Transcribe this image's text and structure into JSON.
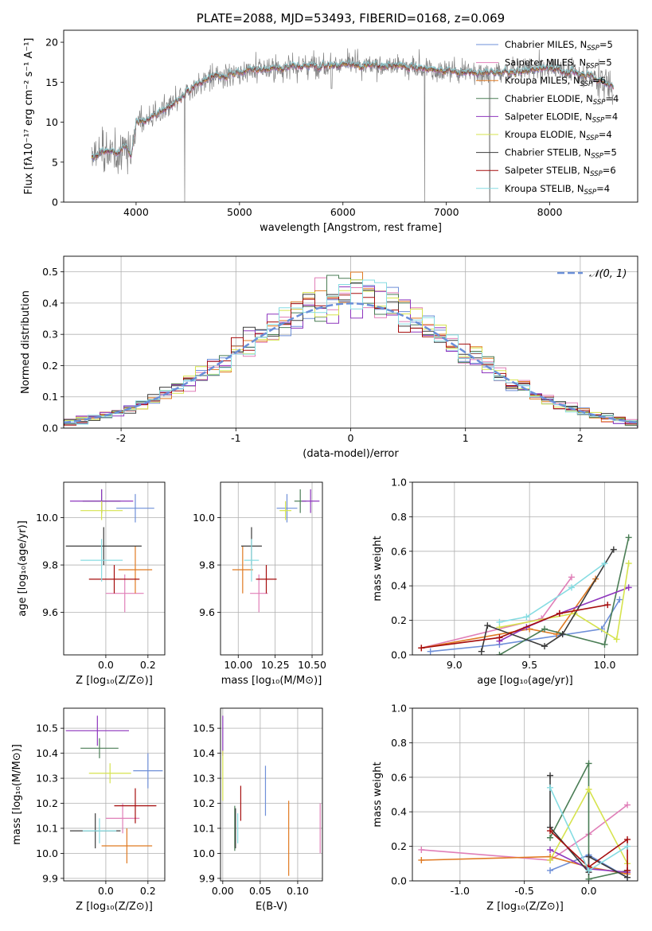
{
  "chart_data": [
    {
      "id": "spectrum",
      "type": "line",
      "title": "PLATE=2088, MJD=53493, FIBERID=0168, z=0.069",
      "xlabel": "wavelength [Angstrom, rest frame]",
      "ylabel": "Flux [fλ10⁻¹⁷ erg cm⁻² s⁻¹ A⁻¹]",
      "xlim": [
        3300,
        8850
      ],
      "ylim": [
        0,
        21.5
      ],
      "xticks": [
        4000,
        5000,
        6000,
        7000,
        8000
      ],
      "yticks": [
        0,
        5,
        10,
        15,
        20
      ],
      "grid": false,
      "legend_position": "right",
      "series": [
        {
          "name": "Chabrier MILES, N_SSP=5",
          "color": "#6e8fd8"
        },
        {
          "name": "Salpeter MILES, N_SSP=5",
          "color": "#e07fb8"
        },
        {
          "name": "Kroupa MILES, N_SSP=6",
          "color": "#e07a22"
        },
        {
          "name": "Chabrier ELODIE, N_SSP=4",
          "color": "#4a7d55"
        },
        {
          "name": "Salpeter ELODIE, N_SSP=4",
          "color": "#8e36be"
        },
        {
          "name": "Kroupa ELODIE, N_SSP=4",
          "color": "#d6e34e"
        },
        {
          "name": "Chabrier STELIB, N_SSP=5",
          "color": "#3b3b3b"
        },
        {
          "name": "Salpeter STELIB, N_SSP=6",
          "color": "#a50d0d"
        },
        {
          "name": "Kroupa STELIB, N_SSP=4",
          "color": "#86dce2"
        }
      ],
      "data_color": "#808080",
      "continuum_points": [
        [
          3570,
          5.5
        ],
        [
          3700,
          6.5
        ],
        [
          3800,
          6
        ],
        [
          3900,
          7
        ],
        [
          3950,
          5.8
        ],
        [
          4000,
          10
        ],
        [
          4100,
          10.3
        ],
        [
          4200,
          11
        ],
        [
          4300,
          11.8
        ],
        [
          4400,
          12.5
        ],
        [
          4500,
          13.8
        ],
        [
          4600,
          14.8
        ],
        [
          4700,
          15.4
        ],
        [
          4800,
          15.8
        ],
        [
          4900,
          16
        ],
        [
          5000,
          16.3
        ],
        [
          5200,
          16.6
        ],
        [
          5400,
          16.8
        ],
        [
          5600,
          17
        ],
        [
          5800,
          17.2
        ],
        [
          6000,
          17.2
        ],
        [
          6200,
          17.1
        ],
        [
          6400,
          17.1
        ],
        [
          6600,
          17
        ],
        [
          6800,
          16.7
        ],
        [
          7000,
          16.4
        ],
        [
          7200,
          16.3
        ],
        [
          7400,
          16.2
        ],
        [
          7600,
          16.3
        ],
        [
          7800,
          16.5
        ],
        [
          8000,
          16.8
        ],
        [
          8200,
          16.3
        ],
        [
          8400,
          15.8
        ],
        [
          8600,
          14.5
        ]
      ]
    },
    {
      "id": "residuals",
      "type": "histogram",
      "xlabel": "(data-model)/error",
      "ylabel": "Normed distribution",
      "xlim": [
        -2.5,
        2.5
      ],
      "ylim": [
        0,
        0.55
      ],
      "xticks": [
        -2,
        -1,
        0,
        1,
        2
      ],
      "yticks": [
        0.0,
        0.1,
        0.2,
        0.3,
        0.4,
        0.5
      ],
      "grid": true,
      "legend": "𝒩(0, 1)",
      "legend_position": "top-right",
      "curve_color": "#6a8fd8"
    },
    {
      "id": "age_vs_Z",
      "type": "errorbar",
      "xlabel": "Z [log₁₀(Z/Z⊙)]",
      "ylabel": "age  [log₁₀(age/yr)]",
      "xlim": [
        -0.2,
        0.28
      ],
      "ylim": [
        9.42,
        10.15
      ],
      "xticks": [
        0.0,
        0.2
      ],
      "yticks": [
        9.6,
        9.8,
        10.0
      ],
      "grid": true,
      "points": [
        {
          "x": 0.14,
          "xerr": 0.09,
          "y": 10.04,
          "yerr": 0.06,
          "color": "#6e8fd8"
        },
        {
          "x": 0.09,
          "xerr": 0.09,
          "y": 9.68,
          "yerr": 0.08,
          "color": "#e07fb8"
        },
        {
          "x": 0.14,
          "xerr": 0.08,
          "y": 9.78,
          "yerr": 0.1,
          "color": "#e07a22"
        },
        {
          "x": -0.02,
          "xerr": 0.09,
          "y": 10.07,
          "yerr": 0.05,
          "color": "#4a7d55"
        },
        {
          "x": -0.02,
          "xerr": 0.15,
          "y": 10.07,
          "yerr": 0.05,
          "color": "#8e36be"
        },
        {
          "x": -0.02,
          "xerr": 0.1,
          "y": 10.03,
          "yerr": 0.04,
          "color": "#d6e34e"
        },
        {
          "x": -0.01,
          "xerr": 0.18,
          "y": 9.88,
          "yerr": 0.08,
          "color": "#3b3b3b"
        },
        {
          "x": 0.04,
          "xerr": 0.12,
          "y": 9.74,
          "yerr": 0.06,
          "color": "#a50d0d"
        },
        {
          "x": -0.02,
          "xerr": 0.1,
          "y": 9.82,
          "yerr": 0.09,
          "color": "#86dce2"
        }
      ]
    },
    {
      "id": "age_vs_mass",
      "type": "errorbar",
      "xlabel": "mass [log₁₀(M/M⊙)]",
      "ylabel": "",
      "xlim": [
        9.88,
        10.57
      ],
      "ylim": [
        9.42,
        10.15
      ],
      "xticks": [
        10.0,
        10.25,
        10.5
      ],
      "yticks": [
        9.6,
        9.8,
        10.0
      ],
      "grid": true,
      "points": [
        {
          "x": 10.33,
          "xerr": 0.07,
          "y": 10.04,
          "yerr": 0.06,
          "color": "#6e8fd8"
        },
        {
          "x": 10.14,
          "xerr": 0.06,
          "y": 9.68,
          "yerr": 0.08,
          "color": "#e07fb8"
        },
        {
          "x": 10.03,
          "xerr": 0.07,
          "y": 9.78,
          "yerr": 0.1,
          "color": "#e07a22"
        },
        {
          "x": 10.42,
          "xerr": 0.04,
          "y": 10.07,
          "yerr": 0.05,
          "color": "#4a7d55"
        },
        {
          "x": 10.49,
          "xerr": 0.06,
          "y": 10.07,
          "yerr": 0.05,
          "color": "#8e36be"
        },
        {
          "x": 10.32,
          "xerr": 0.04,
          "y": 10.03,
          "yerr": 0.04,
          "color": "#d6e34e"
        },
        {
          "x": 10.09,
          "xerr": 0.07,
          "y": 9.88,
          "yerr": 0.08,
          "color": "#3b3b3b"
        },
        {
          "x": 10.19,
          "xerr": 0.07,
          "y": 9.74,
          "yerr": 0.06,
          "color": "#a50d0d"
        },
        {
          "x": 10.09,
          "xerr": 0.05,
          "y": 9.82,
          "yerr": 0.09,
          "color": "#86dce2"
        }
      ]
    },
    {
      "id": "weight_vs_age",
      "type": "line",
      "xlabel": "age  [log₁₀(age/yr)]",
      "ylabel": "mass weight",
      "xlim": [
        8.72,
        10.22
      ],
      "ylim": [
        0,
        1.0
      ],
      "xticks": [
        9.0,
        9.5,
        10.0
      ],
      "yticks": [
        0.0,
        0.2,
        0.4,
        0.6,
        0.8,
        1.0
      ],
      "grid": true,
      "series": [
        {
          "name": "Chabrier MILES",
          "color": "#6e8fd8",
          "x": [
            8.84,
            9.3,
            9.98,
            10.1
          ],
          "y": [
            0.02,
            0.06,
            0.15,
            0.32
          ]
        },
        {
          "name": "Salpeter MILES",
          "color": "#e07fb8",
          "x": [
            8.78,
            9.58,
            9.78
          ],
          "y": [
            0.04,
            0.21,
            0.45
          ]
        },
        {
          "name": "Kroupa MILES",
          "color": "#e07a22",
          "x": [
            8.78,
            9.5,
            9.68,
            9.94
          ],
          "y": [
            0.04,
            0.15,
            0.12,
            0.44
          ]
        },
        {
          "name": "Chabrier ELODIE",
          "color": "#4a7d55",
          "x": [
            9.3,
            9.6,
            10.0,
            10.16
          ],
          "y": [
            0.0,
            0.15,
            0.06,
            0.68
          ]
        },
        {
          "name": "Salpeter ELODIE",
          "color": "#8e36be",
          "x": [
            9.3,
            9.48,
            9.7,
            10.16
          ],
          "y": [
            0.08,
            0.16,
            0.24,
            0.39
          ]
        },
        {
          "name": "Kroupa ELODIE",
          "color": "#d6e34e",
          "x": [
            9.3,
            9.8,
            10.08,
            10.16
          ],
          "y": [
            0.16,
            0.24,
            0.09,
            0.53
          ]
        },
        {
          "name": "Chabrier STELIB",
          "color": "#3b3b3b",
          "x": [
            9.18,
            9.22,
            9.6,
            9.72,
            10.06
          ],
          "y": [
            0.02,
            0.17,
            0.05,
            0.12,
            0.61
          ]
        },
        {
          "name": "Salpeter STELIB",
          "color": "#a50d0d",
          "x": [
            8.78,
            9.3,
            9.7,
            10.02
          ],
          "y": [
            0.04,
            0.1,
            0.24,
            0.29
          ]
        },
        {
          "name": "Kroupa STELIB",
          "color": "#86dce2",
          "x": [
            9.3,
            9.48,
            9.78,
            10.0
          ],
          "y": [
            0.19,
            0.22,
            0.39,
            0.53
          ]
        }
      ]
    },
    {
      "id": "mass_vs_Z",
      "type": "errorbar",
      "xlabel": "Z [log₁₀(Z/Z⊙)]",
      "ylabel": "mass [log₁₀(M/M⊙)]",
      "xlim": [
        -0.2,
        0.28
      ],
      "ylim": [
        9.89,
        10.58
      ],
      "xticks": [
        0.0,
        0.2
      ],
      "yticks": [
        9.9,
        10.0,
        10.1,
        10.2,
        10.3,
        10.4,
        10.5
      ],
      "grid": true,
      "points": [
        {
          "x": 0.2,
          "xerr": 0.07,
          "y": 10.33,
          "yerr": 0.07,
          "color": "#6e8fd8"
        },
        {
          "x": 0.08,
          "xerr": 0.08,
          "y": 10.14,
          "yerr": 0.06,
          "color": "#e07fb8"
        },
        {
          "x": 0.1,
          "xerr": 0.12,
          "y": 10.03,
          "yerr": 0.07,
          "color": "#e07a22"
        },
        {
          "x": -0.03,
          "xerr": 0.09,
          "y": 10.42,
          "yerr": 0.04,
          "color": "#4a7d55"
        },
        {
          "x": -0.04,
          "xerr": 0.15,
          "y": 10.49,
          "yerr": 0.06,
          "color": "#8e36be"
        },
        {
          "x": 0.02,
          "xerr": 0.1,
          "y": 10.32,
          "yerr": 0.04,
          "color": "#d6e34e"
        },
        {
          "x": -0.05,
          "xerr": 0.12,
          "y": 10.09,
          "yerr": 0.07,
          "color": "#3b3b3b"
        },
        {
          "x": 0.14,
          "xerr": 0.1,
          "y": 10.19,
          "yerr": 0.07,
          "color": "#a50d0d"
        },
        {
          "x": -0.03,
          "xerr": 0.08,
          "y": 10.09,
          "yerr": 0.05,
          "color": "#86dce2"
        }
      ]
    },
    {
      "id": "mass_vs_EBV",
      "type": "errorbar",
      "xlabel": "E(B-V)",
      "ylabel": "",
      "xlim": [
        -0.003,
        0.133
      ],
      "ylim": [
        9.89,
        10.58
      ],
      "xticks": [
        0.0,
        0.05,
        0.1
      ],
      "yticks": [
        9.9,
        10.0,
        10.1,
        10.2,
        10.3,
        10.4,
        10.5
      ],
      "grid": true,
      "points": [
        {
          "x": 0.057,
          "y": 10.25,
          "yerr": 0.1,
          "color": "#6e8fd8"
        },
        {
          "x": 0.13,
          "y": 10.1,
          "yerr": 0.1,
          "color": "#e07fb8"
        },
        {
          "x": 0.088,
          "y": 10.06,
          "yerr": 0.15,
          "color": "#e07a22"
        },
        {
          "x": 0.016,
          "y": 10.1,
          "yerr": 0.09,
          "color": "#4a7d55"
        },
        {
          "x": 0.0,
          "y": 10.47,
          "yerr": 0.08,
          "color": "#8e36be"
        },
        {
          "x": 0.0,
          "y": 10.31,
          "yerr": 0.1,
          "color": "#d6e34e"
        },
        {
          "x": 0.017,
          "y": 10.1,
          "yerr": 0.08,
          "color": "#3b3b3b"
        },
        {
          "x": 0.024,
          "y": 10.2,
          "yerr": 0.07,
          "color": "#a50d0d"
        },
        {
          "x": 0.02,
          "y": 10.1,
          "yerr": 0.06,
          "color": "#86dce2"
        }
      ]
    },
    {
      "id": "weight_vs_Z",
      "type": "line",
      "xlabel": "Z [log₁₀(Z/Z⊙)]",
      "ylabel": "mass weight",
      "xlim": [
        -1.37,
        0.38
      ],
      "ylim": [
        0,
        1.0
      ],
      "xticks": [
        -1.0,
        -0.5,
        0.0
      ],
      "yticks": [
        0.0,
        0.2,
        0.4,
        0.6,
        0.8,
        1.0
      ],
      "grid": true,
      "series": [
        {
          "name": "Chabrier MILES",
          "color": "#6e8fd8",
          "x": [
            -0.3,
            0.0,
            0.3
          ],
          "y": [
            0.06,
            0.15,
            0.02
          ]
        },
        {
          "name": "Salpeter MILES",
          "color": "#e07fb8",
          "x": [
            -1.3,
            -0.3,
            0.0,
            0.3
          ],
          "y": [
            0.18,
            0.12,
            0.27,
            0.44
          ]
        },
        {
          "name": "Kroupa MILES",
          "color": "#e07a22",
          "x": [
            -1.3,
            -0.3,
            0.0,
            0.3
          ],
          "y": [
            0.12,
            0.14,
            0.08,
            0.04
          ]
        },
        {
          "name": "Chabrier ELODIE",
          "color": "#4a7d55",
          "x": [
            -0.3,
            0.0,
            0.0,
            0.3
          ],
          "y": [
            0.25,
            0.68,
            0.01,
            0.06
          ]
        },
        {
          "name": "Salpeter ELODIE",
          "color": "#8e36be",
          "x": [
            -0.3,
            0.0,
            0.3
          ],
          "y": [
            0.18,
            0.07,
            0.05
          ]
        },
        {
          "name": "Kroupa ELODIE",
          "color": "#d6e34e",
          "x": [
            -0.3,
            0.0,
            0.3
          ],
          "y": [
            0.12,
            0.53,
            0.1
          ]
        },
        {
          "name": "Chabrier STELIB",
          "color": "#3b3b3b",
          "x": [
            -0.3,
            -0.3,
            0.0,
            0.0,
            0.3
          ],
          "y": [
            0.61,
            0.31,
            0.05,
            0.14,
            0.02
          ]
        },
        {
          "name": "Salpeter STELIB",
          "color": "#a50d0d",
          "x": [
            -0.3,
            0.0,
            0.3,
            0.3
          ],
          "y": [
            0.29,
            0.08,
            0.24,
            0.06
          ]
        },
        {
          "name": "Kroupa STELIB",
          "color": "#86dce2",
          "x": [
            -0.3,
            0.0,
            0.3
          ],
          "y": [
            0.54,
            0.06,
            0.2
          ]
        }
      ]
    }
  ]
}
